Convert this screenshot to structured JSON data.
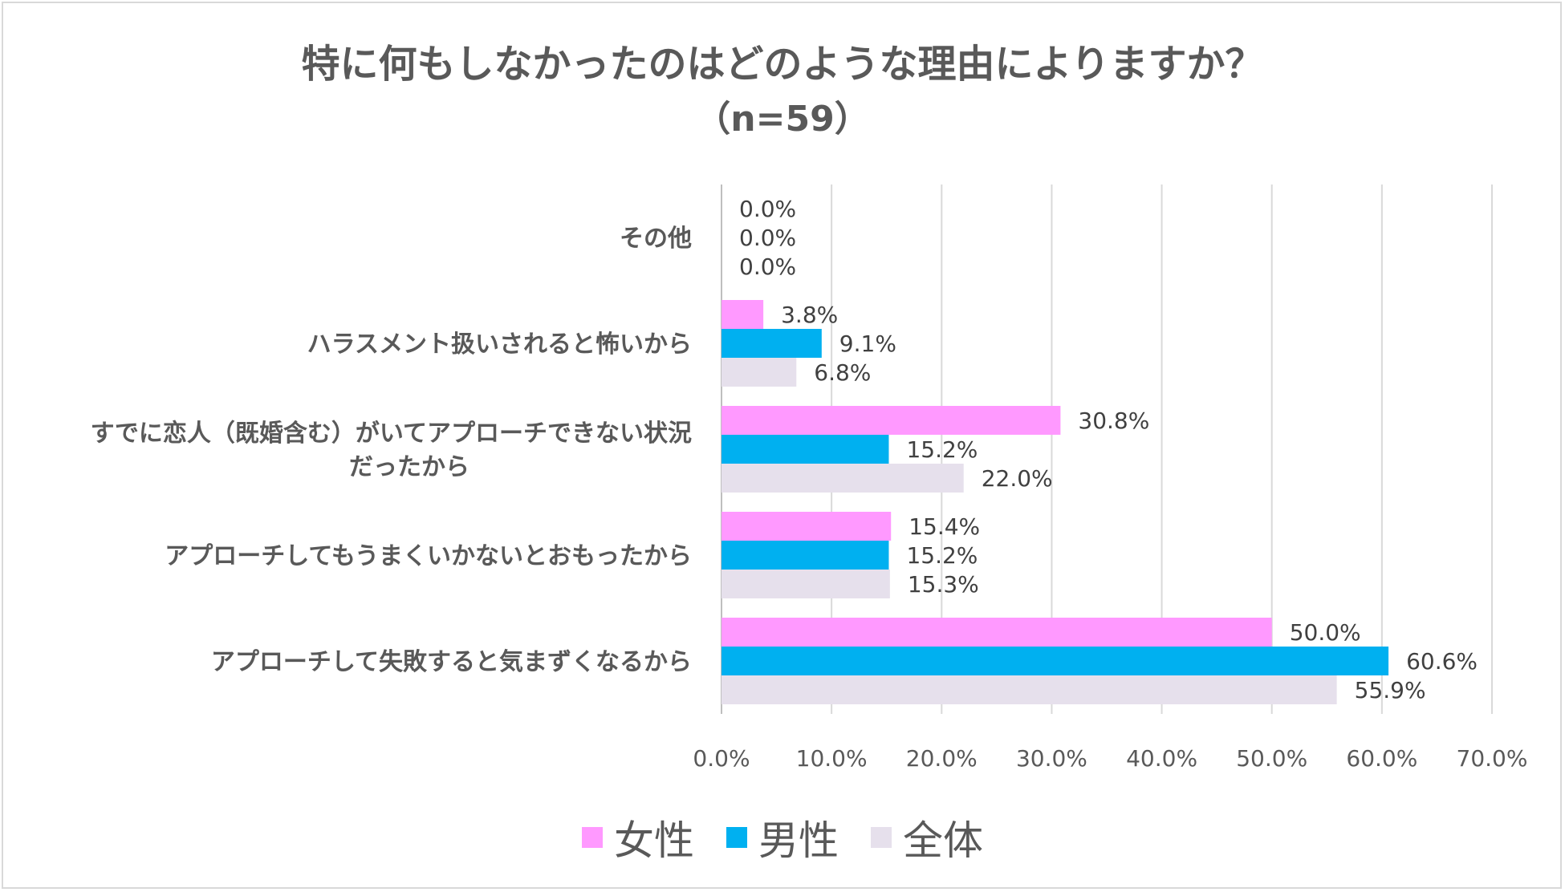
{
  "title": "特に何もしなかったのはどのような理由によりますか？",
  "subtitle": "（n=59）",
  "chart_data": {
    "type": "bar",
    "orientation": "horizontal",
    "categories": [
      [
        "その他"
      ],
      [
        "ハラスメント扱いされると怖いから"
      ],
      [
        "すでに恋人（既婚含む）がいてアプローチできない状況",
        "だったから"
      ],
      [
        "アプローチしてもうまくいかないとおもったから"
      ],
      [
        "アプローチして失敗すると気まずくなるから"
      ]
    ],
    "series": [
      {
        "name": "女性",
        "color": "#ff99ff",
        "values": [
          0.0,
          3.8,
          30.8,
          15.4,
          50.0
        ],
        "labels": [
          "0.0%",
          "3.8%",
          "30.8%",
          "15.4%",
          "50.0%"
        ]
      },
      {
        "name": "男性",
        "color": "#00b0f0",
        "values": [
          0.0,
          9.1,
          15.2,
          15.2,
          60.6
        ],
        "labels": [
          "0.0%",
          "9.1%",
          "15.2%",
          "15.2%",
          "60.6%"
        ]
      },
      {
        "name": "全体",
        "color": "#e6e0ec",
        "values": [
          0.0,
          6.8,
          22.0,
          15.3,
          55.9
        ],
        "labels": [
          "0.0%",
          "6.8%",
          "22.0%",
          "15.3%",
          "55.9%"
        ]
      }
    ],
    "xlim": [
      0,
      70
    ],
    "xticks": [
      "0.0%",
      "10.0%",
      "20.0%",
      "30.0%",
      "40.0%",
      "50.0%",
      "60.0%",
      "70.0%"
    ],
    "grid": true,
    "legend": "bottom"
  }
}
